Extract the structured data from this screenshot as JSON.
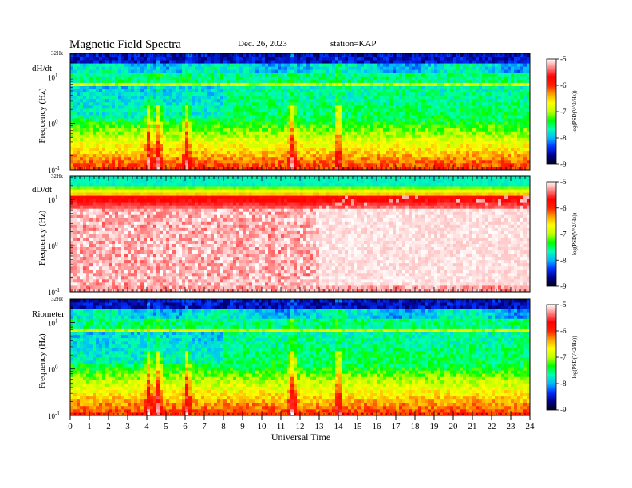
{
  "header": {
    "title": "Magnetic  Field  Spectra",
    "date": "Dec. 26, 2023",
    "station": "station=KAP"
  },
  "chart_data": [
    {
      "type": "heatmap",
      "panel_label": "dH/dt",
      "ylabel": "Frequency (Hz)",
      "top_label": "32Hz",
      "y_scale": "log",
      "y_tick_labels": [
        "10^-1",
        "10^0",
        "10^1"
      ],
      "x_range": [
        0,
        24
      ],
      "colorbar_label": "log(PSD(V^2/Hz))",
      "colorbar_ticks": [
        -5,
        -6,
        -7,
        -8,
        -9
      ],
      "colorbar_range": [
        -9,
        -5
      ],
      "bursts_ut": [
        4.1,
        4.6,
        6.1,
        11.6,
        14.0
      ]
    },
    {
      "type": "heatmap",
      "panel_label": "dD/dt",
      "ylabel": "Frequency (Hz)",
      "top_label": "32Hz",
      "y_scale": "log",
      "y_tick_labels": [
        "10^-1",
        "10^0",
        "10^1"
      ],
      "x_range": [
        0,
        24
      ],
      "colorbar_label": "log(PSD(V^2/Hz))",
      "colorbar_ticks": [
        -5,
        -6,
        -7,
        -8,
        -9
      ],
      "colorbar_range": [
        -9,
        -5
      ],
      "saturated_after_ut": 13
    },
    {
      "type": "heatmap",
      "panel_label": "Riometer",
      "ylabel": "Frequency (Hz)",
      "top_label": "32Hz",
      "y_scale": "log",
      "y_tick_labels": [
        "10^-1",
        "10^0",
        "10^1"
      ],
      "x_range": [
        0,
        24
      ],
      "colorbar_label": "log(PSD(V^2/Hz))",
      "colorbar_ticks": [
        -5,
        -6,
        -7,
        -8,
        -9
      ],
      "colorbar_range": [
        -9,
        -5
      ],
      "bursts_ut": [
        4.1,
        4.6,
        6.1,
        11.6,
        14.0
      ]
    }
  ],
  "x_axis": {
    "label": "Universal Time",
    "ticks": [
      0,
      1,
      2,
      3,
      4,
      5,
      6,
      7,
      8,
      9,
      10,
      11,
      12,
      13,
      14,
      15,
      16,
      17,
      18,
      19,
      20,
      21,
      22,
      23,
      24
    ]
  },
  "colormap": [
    "#000020",
    "#00008a",
    "#0030ff",
    "#00b8ff",
    "#00ffb0",
    "#00ff00",
    "#c0ff00",
    "#ffff00",
    "#ffa000",
    "#ff2000",
    "#ff0000",
    "#ff8080",
    "#ffffff"
  ]
}
